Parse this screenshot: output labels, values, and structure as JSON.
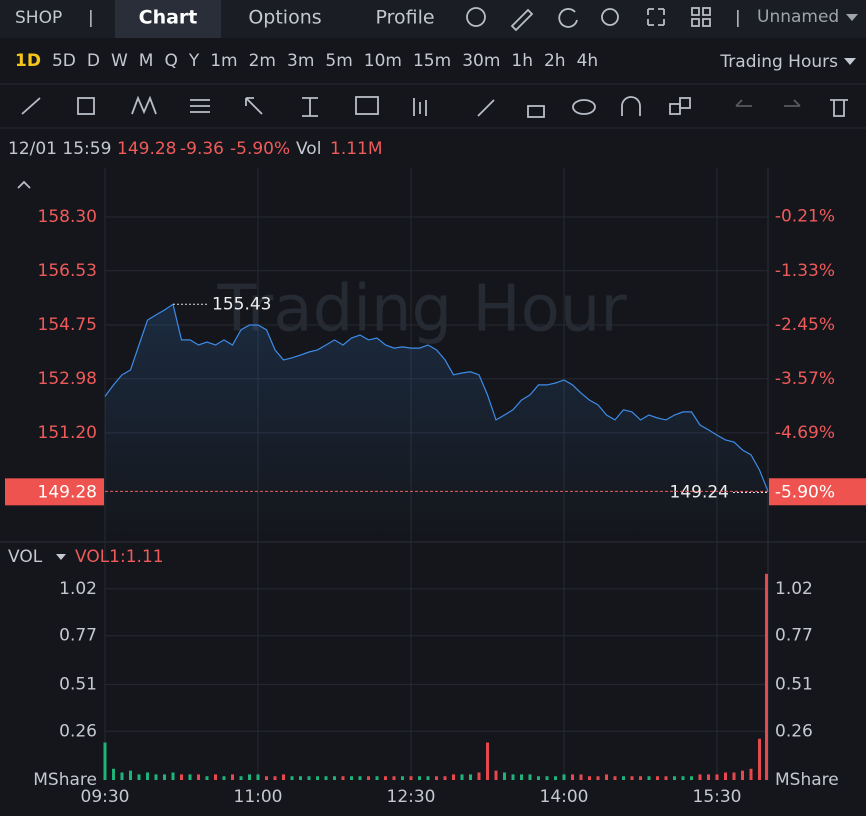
{
  "header": {
    "symbol": "SHOP",
    "tabs": [
      "Chart",
      "Options",
      "Profile"
    ],
    "layout_name": "Unnamed"
  },
  "timeframes": {
    "items": [
      "1D",
      "5D",
      "D",
      "W",
      "M",
      "Q",
      "Y",
      "1m",
      "2m",
      "3m",
      "5m",
      "10m",
      "15m",
      "30m",
      "1h",
      "2h",
      "4h"
    ],
    "session": "Trading Hours"
  },
  "quote": {
    "time": "12/01 15:59",
    "price": "149.28",
    "change": "-9.36",
    "change_pct": "-5.90%",
    "vol_label": "Vol",
    "volume": "1.11M"
  },
  "chart_data": [
    {
      "type": "line",
      "watermark": "Trading Hour",
      "x": [
        0,
        5,
        10,
        15,
        20,
        25,
        30,
        35,
        40,
        45,
        50,
        55,
        60,
        65,
        70,
        75,
        80,
        85,
        90,
        95,
        100,
        105,
        110,
        115,
        120,
        125,
        130,
        135,
        140,
        145,
        150,
        155,
        160,
        165,
        170,
        175,
        180,
        185,
        190,
        195,
        200,
        205,
        210,
        215,
        220,
        225,
        230,
        235,
        240,
        245,
        250,
        255,
        260,
        265,
        270,
        275,
        280,
        285,
        290,
        295,
        300,
        305,
        310,
        315,
        320,
        325,
        330,
        335,
        340,
        345,
        350,
        355,
        360,
        365,
        370,
        375,
        380,
        385,
        390
      ],
      "xlim": [
        0,
        390
      ],
      "xticks": [
        {
          "value": 0,
          "label": "09:30"
        },
        {
          "value": 90,
          "label": "11:00"
        },
        {
          "value": 180,
          "label": "12:30"
        },
        {
          "value": 270,
          "label": "14:00"
        },
        {
          "value": 360,
          "label": "15:30"
        }
      ],
      "series": [
        {
          "color": "#3d8be8",
          "values": [
            152.4,
            152.78,
            153.11,
            153.27,
            154.09,
            154.91,
            155.08,
            155.24,
            155.43,
            154.26,
            154.26,
            154.09,
            154.19,
            154.09,
            154.26,
            154.09,
            154.59,
            154.75,
            154.75,
            154.59,
            153.93,
            153.6,
            153.67,
            153.76,
            153.86,
            153.93,
            154.09,
            154.26,
            154.09,
            154.32,
            154.42,
            154.26,
            154.32,
            154.09,
            153.99,
            154.03,
            153.99,
            153.99,
            154.09,
            153.93,
            153.6,
            153.11,
            153.17,
            153.21,
            153.11,
            152.45,
            151.63,
            151.79,
            151.96,
            152.28,
            152.45,
            152.78,
            152.78,
            152.84,
            152.94,
            152.78,
            152.51,
            152.28,
            152.12,
            151.79,
            151.63,
            151.96,
            151.89,
            151.63,
            151.79,
            151.69,
            151.63,
            151.79,
            151.89,
            151.89,
            151.46,
            151.3,
            151.13,
            150.97,
            150.9,
            150.64,
            150.48,
            149.98,
            149.28
          ]
        }
      ],
      "ylim": [
        147.68,
        159.91
      ],
      "yticks": [
        {
          "value": 158.3,
          "label": "158.30"
        },
        156.53,
        154.75,
        152.98,
        {
          "value": 151.2,
          "label": "151.20"
        }
      ],
      "y2lim": [
        -6.91,
        0.8
      ],
      "y2ticks": [
        {
          "value": -0.21,
          "label": "-0.21%"
        },
        {
          "value": -1.33,
          "label": "-1.33%"
        },
        {
          "value": -2.45,
          "label": "-2.45%"
        },
        {
          "value": -3.57,
          "label": "-3.57%"
        },
        {
          "value": -4.69,
          "label": "-4.69%"
        }
      ],
      "last_price": {
        "value": 149.28,
        "label": "149.28"
      },
      "last_change": {
        "value": -5.9,
        "label": "-5.90%"
      },
      "high": {
        "value": 155.43,
        "label": "155.43"
      },
      "low": {
        "value": 149.24,
        "label": "149.24"
      }
    },
    {
      "type": "bar",
      "title": "VOL",
      "indicator": "VOL1:1.11",
      "unit": "MShare",
      "x": [
        0,
        5,
        10,
        15,
        20,
        25,
        30,
        35,
        40,
        45,
        50,
        55,
        60,
        65,
        70,
        75,
        80,
        85,
        90,
        95,
        100,
        105,
        110,
        115,
        120,
        125,
        130,
        135,
        140,
        145,
        150,
        155,
        160,
        165,
        170,
        175,
        180,
        185,
        190,
        195,
        200,
        205,
        210,
        215,
        220,
        225,
        230,
        235,
        240,
        245,
        250,
        255,
        260,
        265,
        270,
        275,
        280,
        285,
        290,
        295,
        300,
        305,
        310,
        315,
        320,
        325,
        330,
        335,
        340,
        345,
        350,
        355,
        360,
        365,
        370,
        375,
        380,
        385,
        390
      ],
      "xlim": [
        0,
        390
      ],
      "ylim": [
        0,
        1.254
      ],
      "yticks": [
        0.26,
        0.51,
        0.77,
        1.02
      ],
      "colors": {
        "up": "#1fb37a",
        "down": "#e5484d"
      },
      "series": [
        {
          "values": [
            0.2,
            0.06,
            0.04,
            0.05,
            0.03,
            0.04,
            0.03,
            0.03,
            0.04,
            0.03,
            0.03,
            0.03,
            0.02,
            0.03,
            0.02,
            0.03,
            0.02,
            0.03,
            0.03,
            0.02,
            0.02,
            0.03,
            0.02,
            0.02,
            0.02,
            0.02,
            0.02,
            0.02,
            0.02,
            0.02,
            0.02,
            0.02,
            0.02,
            0.02,
            0.02,
            0.02,
            0.02,
            0.02,
            0.02,
            0.02,
            0.02,
            0.03,
            0.03,
            0.03,
            0.04,
            0.2,
            0.05,
            0.04,
            0.03,
            0.03,
            0.03,
            0.02,
            0.02,
            0.02,
            0.03,
            0.03,
            0.03,
            0.02,
            0.02,
            0.03,
            0.02,
            0.02,
            0.02,
            0.02,
            0.02,
            0.02,
            0.02,
            0.02,
            0.02,
            0.02,
            0.03,
            0.03,
            0.03,
            0.04,
            0.04,
            0.05,
            0.06,
            0.22,
            1.1
          ]
        }
      ]
    }
  ]
}
